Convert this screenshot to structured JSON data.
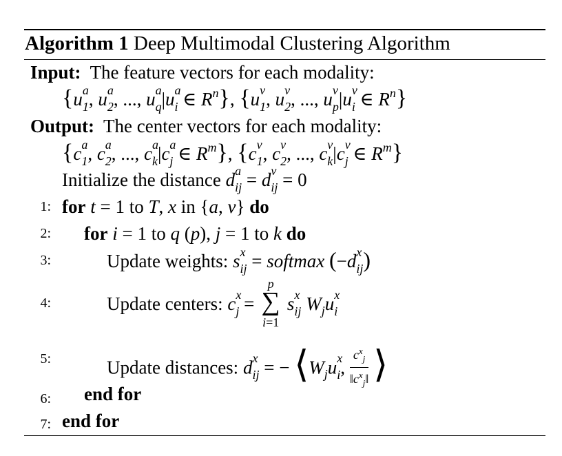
{
  "caption": {
    "label": "Algorithm 1",
    "title": "Deep Multimodal Clustering Algorithm"
  },
  "input": {
    "label": "Input:",
    "text": "The feature vectors for each modality:"
  },
  "output": {
    "label": "Output:",
    "text": "The center vectors for each modality:"
  },
  "init_text": "Initialize the distance",
  "steps": [
    {
      "num": "1:",
      "kw": "for",
      "text": "to",
      "kw_end": "do"
    },
    {
      "num": "2:",
      "kw": "for",
      "text": "to",
      "kw_end": "do"
    },
    {
      "num": "3:",
      "text": "Update weights:"
    },
    {
      "num": "4:",
      "text": "Update centers:"
    },
    {
      "num": "5:",
      "text": "Update distances:"
    },
    {
      "num": "6:",
      "kw": "end for"
    },
    {
      "num": "7:",
      "kw": "end for"
    }
  ]
}
